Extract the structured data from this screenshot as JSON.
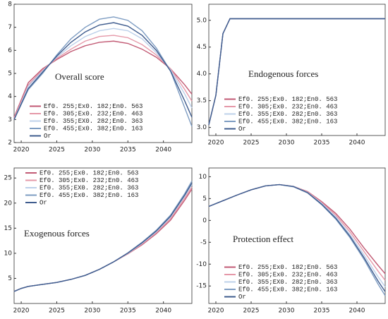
{
  "chart_data": [
    {
      "type": "line",
      "title": "Overall score",
      "legend": "lower left",
      "grid": false,
      "xlim": [
        2019,
        2044
      ],
      "xticks": [
        2020,
        2025,
        2030,
        2035,
        2040
      ],
      "ylim": [
        2,
        8
      ],
      "yticks": [
        2,
        3,
        4,
        5,
        6,
        7,
        8
      ],
      "x": [
        2019,
        2021,
        2023,
        2025,
        2027,
        2029,
        2031,
        2033,
        2035,
        2037,
        2039,
        2041,
        2043,
        2044
      ],
      "series": [
        {
          "name": "Ef0. 255;Ex0. 182;En0. 563",
          "color": "#c25a74",
          "values": [
            3.1,
            4.6,
            5.2,
            5.6,
            5.95,
            6.2,
            6.35,
            6.4,
            6.3,
            6.05,
            5.7,
            5.2,
            4.5,
            4.1
          ]
        },
        {
          "name": "Ef0. 305;Ex0. 232;En0. 463",
          "color": "#e598a8",
          "values": [
            3.05,
            4.5,
            5.15,
            5.65,
            6.05,
            6.4,
            6.6,
            6.65,
            6.55,
            6.25,
            5.8,
            5.2,
            4.3,
            3.8
          ]
        },
        {
          "name": "Ef0. 355;EX0. 282;En0. 363",
          "color": "#bcd0ea",
          "values": [
            3.0,
            4.45,
            5.1,
            5.7,
            6.2,
            6.6,
            6.85,
            6.95,
            6.85,
            6.5,
            5.9,
            5.15,
            4.1,
            3.5
          ]
        },
        {
          "name": "Ef0. 455;Ex0. 382;En0. 163",
          "color": "#7d9cc2",
          "values": [
            3.0,
            4.3,
            5.0,
            5.8,
            6.5,
            7.0,
            7.35,
            7.45,
            7.3,
            6.85,
            6.1,
            5.1,
            3.5,
            2.7
          ]
        },
        {
          "name": "Or",
          "color": "#3f5c8e",
          "values": [
            3.0,
            4.35,
            5.05,
            5.75,
            6.35,
            6.8,
            7.1,
            7.2,
            7.05,
            6.65,
            6.0,
            5.1,
            3.8,
            3.1
          ]
        }
      ]
    },
    {
      "type": "line",
      "title": "Endogenous forces",
      "legend": "lower left",
      "grid": false,
      "xlim": [
        2019,
        2044
      ],
      "xticks": [
        2020,
        2025,
        2030,
        2035,
        2040
      ],
      "ylim": [
        2.85,
        5.3
      ],
      "yticks": [
        {
          "value": 3,
          "label": "3.0"
        },
        3.5,
        {
          "value": 4,
          "label": "4.0"
        },
        4.5,
        {
          "value": 5,
          "label": "5.0"
        }
      ],
      "x": [
        2019,
        2020,
        2021,
        2022,
        2025,
        2030,
        2035,
        2040,
        2044
      ],
      "series": [
        {
          "name": "Ef0. 255;Ex0. 182;En0. 563",
          "color": "#c25a74",
          "values": [
            3.05,
            3.6,
            4.75,
            5.03,
            5.03,
            5.03,
            5.03,
            5.03,
            5.03
          ]
        },
        {
          "name": "Ef0. 305;Ex0. 232;En0. 463",
          "color": "#e598a8",
          "values": [
            3.05,
            3.6,
            4.75,
            5.03,
            5.03,
            5.03,
            5.03,
            5.03,
            5.03
          ]
        },
        {
          "name": "Ef0. 355;EX0. 282;En0. 363",
          "color": "#bcd0ea",
          "values": [
            3.05,
            3.6,
            4.75,
            5.03,
            5.03,
            5.03,
            5.03,
            5.03,
            5.03
          ]
        },
        {
          "name": "Ef0. 455;Ex0. 382;En0. 163",
          "color": "#7d9cc2",
          "values": [
            3.05,
            3.6,
            4.75,
            5.03,
            5.03,
            5.03,
            5.03,
            5.03,
            5.03
          ]
        },
        {
          "name": "Or",
          "color": "#3f5c8e",
          "values": [
            3.05,
            3.6,
            4.75,
            5.03,
            5.03,
            5.03,
            5.03,
            5.03,
            5.03
          ]
        }
      ]
    },
    {
      "type": "line",
      "title": "Exogenous forces",
      "legend": "upper left",
      "grid": false,
      "xlim": [
        2019,
        2044
      ],
      "xticks": [
        2020,
        2025,
        2030,
        2035,
        2040
      ],
      "ylim": [
        0,
        27
      ],
      "yticks": [
        5,
        10,
        15,
        20,
        25
      ],
      "x": [
        2019,
        2020,
        2021,
        2023,
        2025,
        2027,
        2029,
        2031,
        2033,
        2035,
        2037,
        2039,
        2041,
        2043,
        2044
      ],
      "series": [
        {
          "name": "Ef0. 255;Ex0. 182;En0. 563",
          "color": "#c25a74",
          "values": [
            2.4,
            3.0,
            3.4,
            3.8,
            4.2,
            4.8,
            5.6,
            6.8,
            8.3,
            9.9,
            11.7,
            13.9,
            16.6,
            20.6,
            22.8
          ]
        },
        {
          "name": "Ef0. 305;Ex0. 232;En0. 463",
          "color": "#e598a8",
          "values": [
            2.4,
            3.0,
            3.4,
            3.8,
            4.2,
            4.8,
            5.6,
            6.8,
            8.3,
            9.95,
            11.85,
            14.1,
            16.9,
            21.0,
            23.2
          ]
        },
        {
          "name": "Ef0. 355;EX0. 282;En0. 363",
          "color": "#bcd0ea",
          "values": [
            2.4,
            3.0,
            3.4,
            3.8,
            4.2,
            4.8,
            5.6,
            6.8,
            8.3,
            10.0,
            12.0,
            14.3,
            17.2,
            21.4,
            23.7
          ]
        },
        {
          "name": "Ef0. 455;Ex0. 382;En0. 163",
          "color": "#7d9cc2",
          "values": [
            2.4,
            3.0,
            3.4,
            3.8,
            4.2,
            4.8,
            5.6,
            6.8,
            8.3,
            10.1,
            12.2,
            14.6,
            17.6,
            21.9,
            24.4
          ]
        },
        {
          "name": "Or",
          "color": "#3f5c8e",
          "values": [
            2.4,
            3.0,
            3.4,
            3.8,
            4.2,
            4.8,
            5.6,
            6.8,
            8.3,
            10.05,
            12.1,
            14.45,
            17.4,
            21.6,
            24.0
          ]
        }
      ]
    },
    {
      "type": "line",
      "title": "Protection effect",
      "legend": "lower left",
      "grid": false,
      "xlim": [
        2019,
        2044
      ],
      "xticks": [
        2020,
        2025,
        2030,
        2035,
        2040
      ],
      "ylim": [
        -19,
        12
      ],
      "yticks": [
        10,
        5,
        0,
        -5,
        -10,
        -15
      ],
      "x": [
        2019,
        2021,
        2023,
        2025,
        2027,
        2029,
        2031,
        2033,
        2035,
        2037,
        2039,
        2041,
        2043,
        2044
      ],
      "series": [
        {
          "name": "Ef0. 255;Ex0. 182;En0. 563",
          "color": "#c25a74",
          "values": [
            3.2,
            4.5,
            5.8,
            7.0,
            7.9,
            8.2,
            7.8,
            6.6,
            4.3,
            1.6,
            -2.0,
            -6.3,
            -10.3,
            -12.2
          ]
        },
        {
          "name": "Ef0. 305;Ex0. 232;En0. 463",
          "color": "#e598a8",
          "values": [
            3.2,
            4.5,
            5.8,
            7.0,
            7.9,
            8.2,
            7.8,
            6.5,
            4.1,
            1.2,
            -2.6,
            -7.1,
            -11.6,
            -13.7
          ]
        },
        {
          "name": "Ef0. 355;EX0. 282;En0. 363",
          "color": "#bcd0ea",
          "values": [
            3.2,
            4.5,
            5.8,
            7.0,
            7.9,
            8.2,
            7.8,
            6.4,
            3.9,
            0.8,
            -3.2,
            -7.9,
            -12.9,
            -15.2
          ]
        },
        {
          "name": "Ef0. 455;Ex0. 382;En0. 163",
          "color": "#7d9cc2",
          "values": [
            3.2,
            4.5,
            5.8,
            7.0,
            7.9,
            8.2,
            7.7,
            6.3,
            3.6,
            0.3,
            -3.9,
            -8.9,
            -14.6,
            -17.2
          ]
        },
        {
          "name": "Or",
          "color": "#3f5c8e",
          "values": [
            3.2,
            4.5,
            5.8,
            7.0,
            7.9,
            8.2,
            7.75,
            6.35,
            3.7,
            0.5,
            -3.6,
            -8.5,
            -13.9,
            -16.3
          ]
        }
      ]
    }
  ]
}
